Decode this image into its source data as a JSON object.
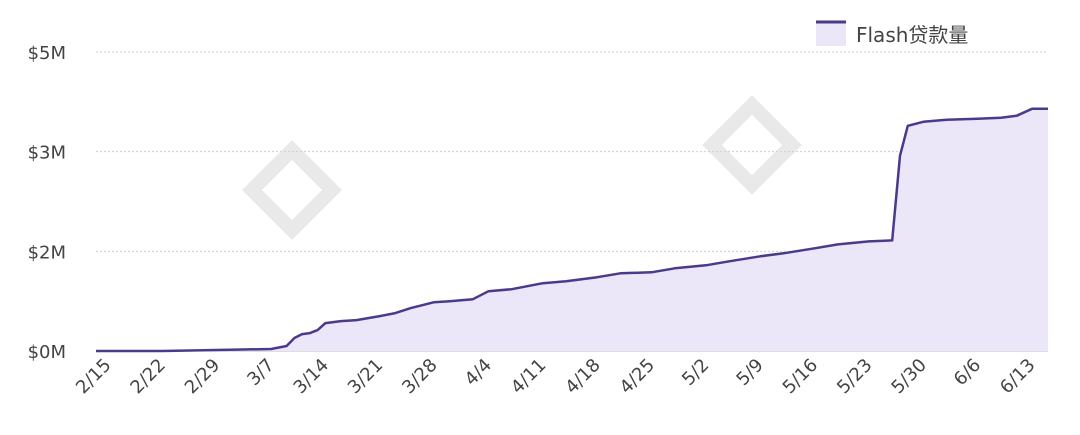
{
  "chart_data": {
    "type": "area",
    "title": "",
    "xlabel": "",
    "ylabel": "",
    "legend": {
      "position": "top-right",
      "entries": [
        "Flash贷款量"
      ]
    },
    "grid": {
      "y": true,
      "x": false
    },
    "colors": {
      "line": "#4b3a8c",
      "fill": "#ece7f8",
      "grid": "#cfcfcf",
      "tick_text": "#444444"
    },
    "y_ticks": [
      {
        "label": "$0M",
        "value": 0
      },
      {
        "label": "$2M",
        "value": 1
      },
      {
        "label": "$3M",
        "value": 2
      },
      {
        "label": "$5M",
        "value": 3
      }
    ],
    "y_scale_note_values_are_gridline_index": true,
    "ylim": [
      0,
      3
    ],
    "x_ticks": [
      "2/15",
      "2/22",
      "2/29",
      "3/7",
      "3/14",
      "3/21",
      "3/28",
      "4/4",
      "4/11",
      "4/18",
      "4/25",
      "5/2",
      "5/9",
      "5/16",
      "5/23",
      "5/30",
      "6/6",
      "6/13"
    ],
    "series": [
      {
        "name": "Flash贷款量",
        "x": [
          "2/15",
          "2/22",
          "2/29",
          "3/7",
          "3/9",
          "3/10",
          "3/11",
          "3/12",
          "3/13",
          "3/14",
          "3/16",
          "3/18",
          "3/21",
          "3/23",
          "3/25",
          "3/28",
          "3/30",
          "4/2",
          "4/4",
          "4/7",
          "4/11",
          "4/14",
          "4/18",
          "4/21",
          "4/25",
          "4/28",
          "5/2",
          "5/5",
          "5/9",
          "5/12",
          "5/16",
          "5/19",
          "5/23",
          "5/26",
          "5/27",
          "5/28",
          "5/30",
          "6/2",
          "6/6",
          "6/9",
          "6/11",
          "6/13",
          "6/15"
        ],
        "values": [
          0.0,
          0.0,
          0.01,
          0.02,
          0.05,
          0.13,
          0.17,
          0.18,
          0.21,
          0.28,
          0.3,
          0.31,
          0.35,
          0.38,
          0.43,
          0.49,
          0.5,
          0.52,
          0.6,
          0.62,
          0.68,
          0.7,
          0.74,
          0.78,
          0.79,
          0.83,
          0.86,
          0.9,
          0.95,
          0.98,
          1.03,
          1.07,
          1.1,
          1.11,
          1.96,
          2.26,
          2.3,
          2.32,
          2.33,
          2.34,
          2.36,
          2.43,
          2.43
        ]
      }
    ]
  }
}
